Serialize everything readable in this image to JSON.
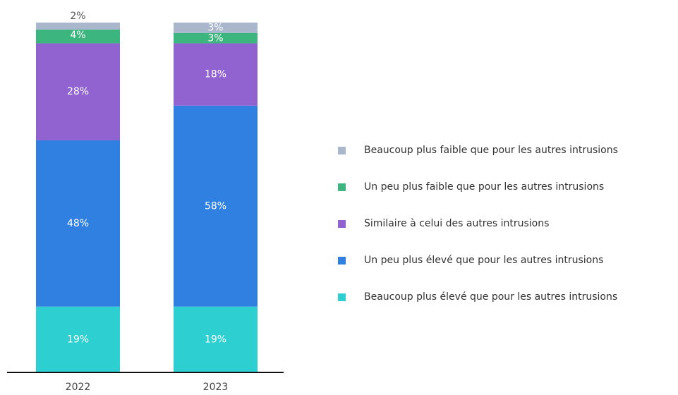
{
  "chart_data": {
    "type": "stacked_bar",
    "categories": [
      "2022",
      "2023"
    ],
    "series": [
      {
        "name": "Beaucoup plus élevé que pour les autres intrusions",
        "color": "#2ecfd0",
        "values": [
          19,
          19
        ]
      },
      {
        "name": "Un peu plus élevé que pour les autres intrusions",
        "color": "#2f80e1",
        "values": [
          48,
          58
        ]
      },
      {
        "name": "Similaire à celui des autres intrusions",
        "color": "#9163d1",
        "values": [
          28,
          18
        ]
      },
      {
        "name": "Un peu plus faible que pour les autres intrusions",
        "color": "#3db57f",
        "values": [
          4,
          3
        ]
      },
      {
        "name": "Beaucoup plus faible que pour les autres intrusions",
        "color": "#a9b6cc",
        "values": [
          2,
          3
        ]
      }
    ],
    "value_labels": [
      [
        "19%",
        "19%"
      ],
      [
        "48%",
        "58%"
      ],
      [
        "28%",
        "18%"
      ],
      [
        "4%",
        "3%"
      ],
      [
        "2%",
        "3%"
      ]
    ],
    "legend": "right"
  }
}
